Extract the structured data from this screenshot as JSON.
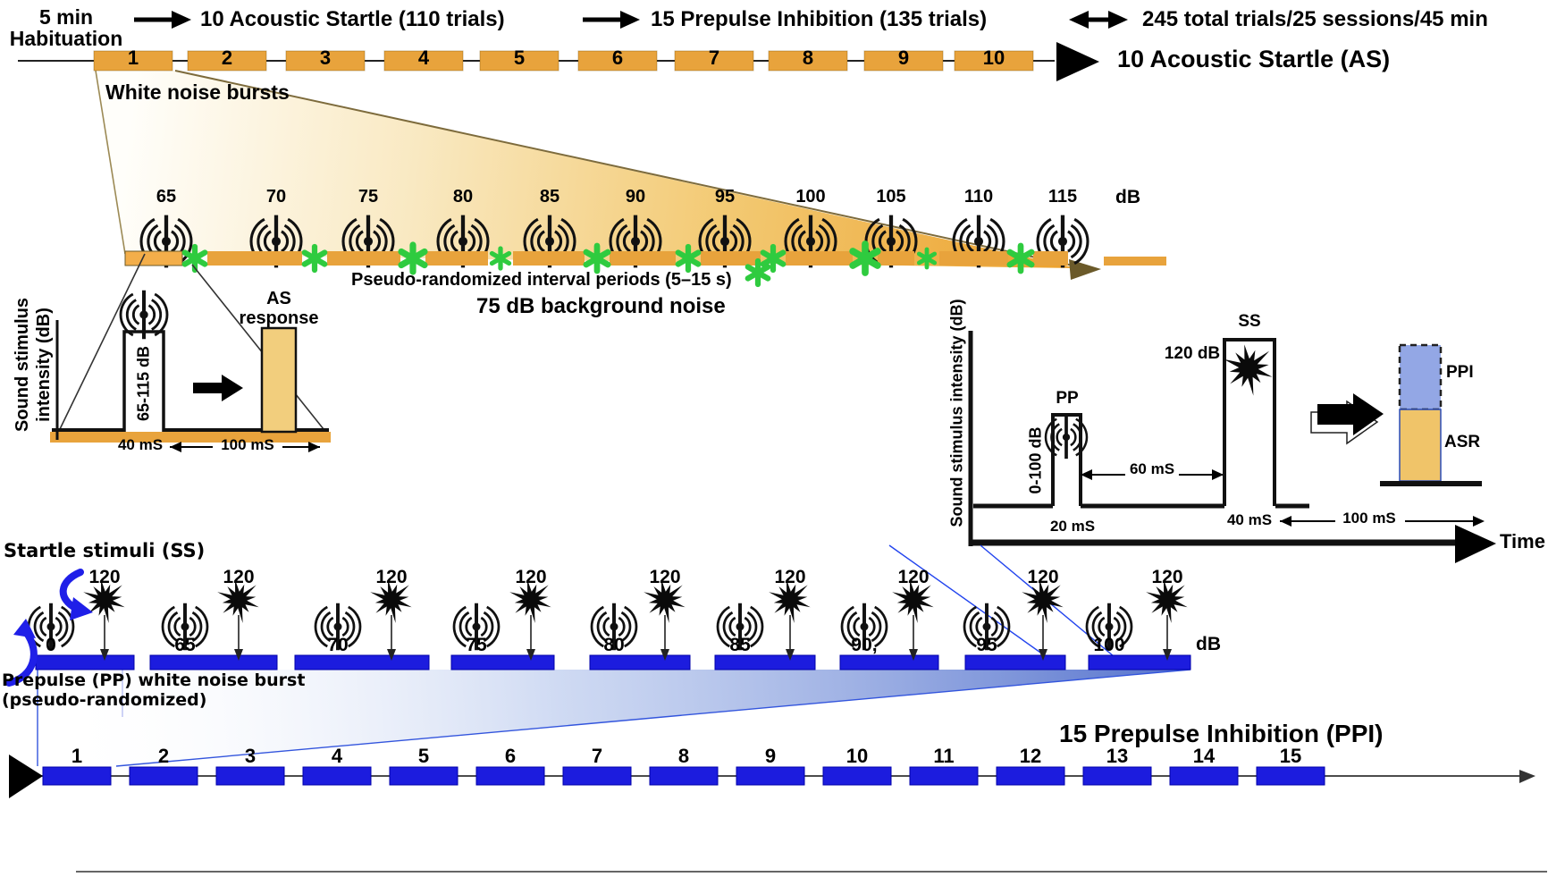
{
  "header": {
    "phase0_line1": "5 min",
    "phase0_line2": "Habituation",
    "phase1": "10 Acoustic Startle  (110 trials)",
    "phase2": "15 Prepulse Inhibition (135 trials)",
    "phase3": "245 total trials/25 sessions/45 min"
  },
  "as_timeline": {
    "trial_numbers": [
      "1",
      "2",
      "3",
      "4",
      "5",
      "6",
      "7",
      "8",
      "9",
      "10"
    ],
    "label": "10 Acoustic Startle (AS)"
  },
  "as_detail": {
    "white_noise_label": "White noise bursts",
    "db_values": [
      "65",
      "70",
      "75",
      "80",
      "85",
      "90",
      "95",
      "100",
      "105",
      "110",
      "115"
    ],
    "db_unit": "dB",
    "interval_label": "Pseudo-randomized interval periods (5–15 s)",
    "background_noise_label": "75 dB background noise"
  },
  "left_inset": {
    "y_axis_label_line1": "Sound stimulus",
    "y_axis_label_line2": "intensity (dB)",
    "pulse_intensity": "65-115 dB",
    "pulse_duration": "40 mS",
    "response_line1": "AS",
    "response_line2": "response",
    "window_duration": "100 mS"
  },
  "right_inset": {
    "y_axis_label": "Sound stimulus intensity (dB)",
    "pp_label": "PP",
    "pp_intensity": "0-100 dB",
    "pp_duration": "20 mS",
    "interstimulus_interval": "60 mS",
    "ss_label": "SS",
    "ss_intensity": "120 dB",
    "ss_duration": "40 mS",
    "window_duration": "100 mS",
    "time_axis_label": "Time",
    "ppi_bar_label": "PPI",
    "asr_bar_label": "ASR"
  },
  "pp_section": {
    "startle_label": "Startle stimuli (SS)",
    "prepulse_line1": "Prepulse (PP) white noise burst",
    "prepulse_line2": "(pseudo-randomized)",
    "prepulse_db_values": [
      "0",
      "65",
      "70",
      "75",
      "80",
      "85",
      "90,",
      "95",
      "100"
    ],
    "startle_db_value": "120",
    "db_unit": "dB"
  },
  "ppi_timeline": {
    "trial_numbers": [
      "1",
      "2",
      "3",
      "4",
      "5",
      "6",
      "7",
      "8",
      "9",
      "10",
      "11",
      "12",
      "13",
      "14",
      "15"
    ],
    "label": "15 Prepulse Inhibition (PPI)"
  },
  "colors": {
    "as_segment": "#E8A33C",
    "as_segment_bright": "#F3AE4A",
    "asterisk_green": "#2FCB3F",
    "pp_segment": "#1C1CDE",
    "ppi_fill": "#93A7E5",
    "asr_fill": "#F0C469",
    "as_response_fill": "#F2CE7D"
  }
}
